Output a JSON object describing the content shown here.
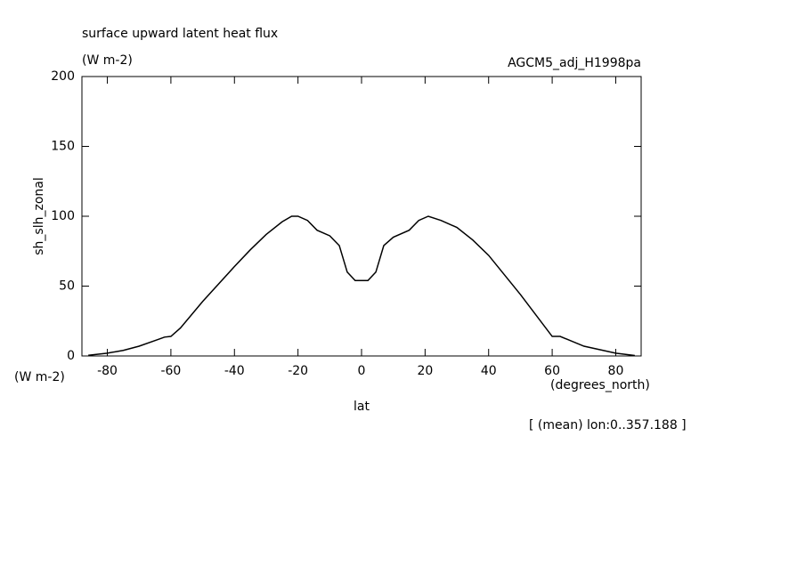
{
  "chart_data": {
    "type": "line",
    "title": "surface upward latent heat flux",
    "subtitle": "(W m-2)",
    "dataset": "AGCM5_adj_H1998pa",
    "y_label": "sh_slh_zonal",
    "y_units": "(W m-2)",
    "x_label": "lat",
    "x_units": "(degrees_north)",
    "note": "[ (mean) lon:0..357.188 ]",
    "series": [
      {
        "name": "sh_slh_zonal",
        "color": "#000000",
        "x": [
          -86,
          -80,
          -75,
          -70,
          -65,
          -62,
          -60,
          -57,
          -50,
          -40,
          -35,
          -30,
          -25,
          -22,
          -20,
          -17,
          -14,
          -10,
          -7,
          -4.5,
          -2,
          2,
          4.5,
          7,
          10,
          15,
          18,
          21,
          25,
          30,
          35,
          40,
          50,
          60,
          62.5,
          70,
          80,
          86
        ],
        "values": [
          0.5,
          2,
          4,
          7,
          11,
          13.5,
          14,
          20,
          39,
          64,
          76,
          87,
          96,
          100,
          100,
          97,
          90,
          86,
          79,
          60,
          54,
          54,
          60,
          79,
          85,
          90,
          97,
          100,
          97,
          92,
          83,
          72,
          44,
          14,
          14,
          7,
          2,
          0.3
        ]
      }
    ],
    "xlim": [
      -88,
      88
    ],
    "ylim": [
      0,
      200
    ],
    "xticks": [
      -80,
      -60,
      -40,
      -20,
      0,
      20,
      40,
      60,
      80
    ],
    "yticks": [
      0,
      50,
      100,
      150,
      200
    ]
  }
}
